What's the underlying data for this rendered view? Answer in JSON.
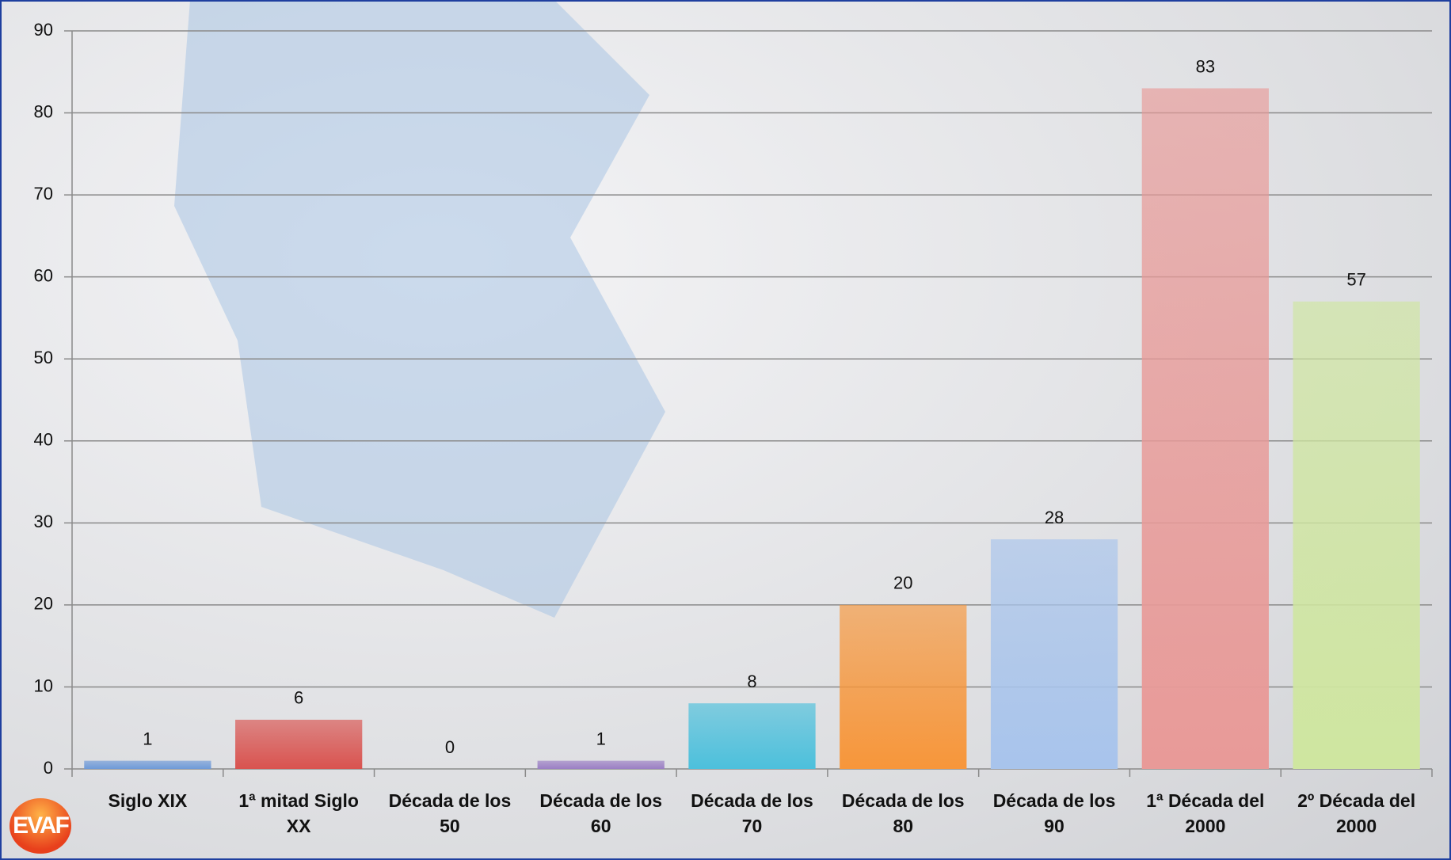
{
  "logo": "EVAF",
  "chart_data": {
    "type": "bar",
    "categories": [
      "Siglo XIX",
      "1ª mitad Siglo XX",
      "Década de los 50",
      "Década de los 60",
      "Década de los 70",
      "Década de los 80",
      "Década de los 90",
      "1ª Década del 2000",
      "2º Década del 2000"
    ],
    "values": [
      1,
      6,
      0,
      1,
      8,
      20,
      28,
      83,
      57
    ],
    "colors": [
      "#6f9ad8",
      "#d9534f",
      "#8fbf5a",
      "#9b7fc4",
      "#4cc0dc",
      "#f7963a",
      "#a8c4ec",
      "#e89a98",
      "#cfe6a0"
    ],
    "ylim": [
      0,
      90
    ],
    "yticks": [
      0,
      10,
      20,
      30,
      40,
      50,
      60,
      70,
      80,
      90
    ],
    "grid": true
  }
}
